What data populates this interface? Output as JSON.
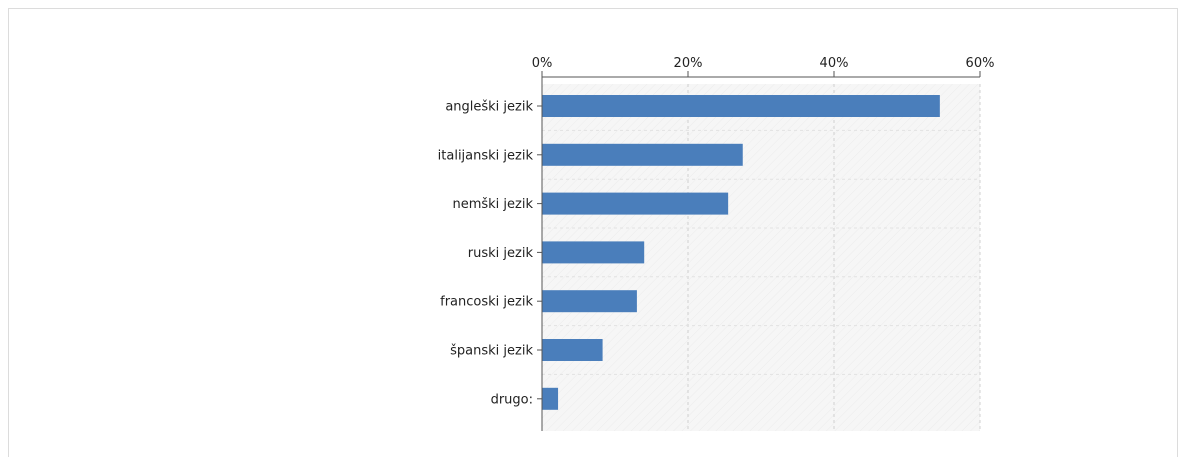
{
  "colors": {
    "bar": "#4a7ebb",
    "axis": "#555555",
    "grid": "#d0d0d0",
    "plot_bg": "#f6f6f6"
  },
  "chart_data": {
    "type": "bar",
    "orientation": "horizontal",
    "title": "",
    "xlabel": "",
    "ylabel": "",
    "x_axis_position": "top",
    "grid": true,
    "xlim": [
      0,
      60
    ],
    "xticks": [
      "0%",
      "20%",
      "40%",
      "60%"
    ],
    "categories": [
      "angleški jezik",
      "italijanski jezik",
      "nemški jezik",
      "ruski jezik",
      "francoski jezik",
      "španski jezik",
      "drugo:"
    ],
    "values": [
      54.5,
      27.5,
      25.5,
      14,
      13,
      8.3,
      2.2
    ],
    "unit": "%"
  }
}
